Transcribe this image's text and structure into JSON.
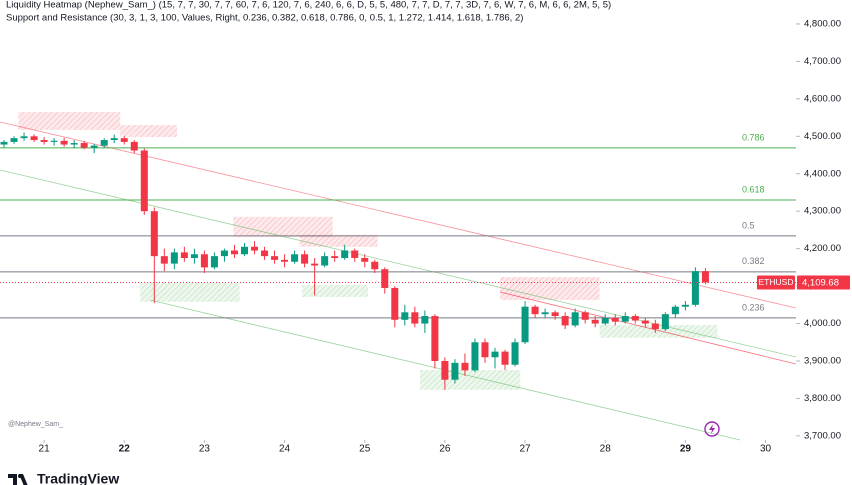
{
  "header": {
    "indicators": [
      "Liquidity Heatmap (Nephew_Sam_) (15, 7, 7, 30, 7, 7, 60, 7, 6, 120, 7, 6, 240, 6, 6, D, 5, 5, 480, 7, 7, D, 7, 7, 3D, 7, 6, W, 7, 6, M, 6, 6, 2M, 5, 5)",
      "Support and Resistance (30, 3, 1, 3, 100, Values, Right, 0.236, 0.382, 0.618, 0.786, 0, 0.5, 1, 1.272, 1.414, 1.618, 1.786, 2)"
    ]
  },
  "chart_data": {
    "type": "candlestick",
    "watermark": "@Nephew_Sam_",
    "up_color": "#089981",
    "down_color": "#f23645",
    "x": [
      20.5,
      20.625,
      20.75,
      20.875,
      21,
      21.125,
      21.25,
      21.375,
      21.5,
      21.625,
      21.75,
      21.875,
      22,
      22.125,
      22.25,
      22.375,
      22.5,
      22.625,
      22.75,
      22.875,
      23,
      23.125,
      23.25,
      23.375,
      23.5,
      23.625,
      23.75,
      23.875,
      24,
      24.125,
      24.25,
      24.375,
      24.5,
      24.625,
      24.75,
      24.875,
      25,
      25.125,
      25.25,
      25.375,
      25.5,
      25.625,
      25.75,
      25.875,
      26,
      26.125,
      26.25,
      26.375,
      26.5,
      26.625,
      26.75,
      26.875,
      27,
      27.125,
      27.25,
      27.375,
      27.5,
      27.625,
      27.75,
      27.875,
      28,
      28.125,
      28.25,
      28.375,
      28.5,
      28.625,
      28.75,
      28.875,
      29,
      29.125,
      29.25
    ],
    "open": [
      4478,
      4485,
      4495,
      4500,
      4490,
      4485,
      4488,
      4478,
      4482,
      4470,
      4475,
      4490,
      4495,
      4485,
      4462,
      4300,
      4180,
      4160,
      4190,
      4175,
      4185,
      4150,
      4180,
      4195,
      4185,
      4205,
      4195,
      4180,
      4170,
      4165,
      4185,
      4160,
      4155,
      4180,
      4175,
      4195,
      4175,
      4165,
      4145,
      4095,
      4010,
      4030,
      4000,
      4020,
      3900,
      3850,
      3895,
      3875,
      3950,
      3910,
      3925,
      3890,
      3950,
      4045,
      4025,
      4030,
      4020,
      3995,
      4030,
      4010,
      4000,
      4015,
      4005,
      4020,
      4008,
      4000,
      3985,
      4025,
      4045,
      4050,
      4140
    ],
    "high": [
      4490,
      4500,
      4510,
      4505,
      4498,
      4495,
      4496,
      4490,
      4488,
      4480,
      4495,
      4505,
      4500,
      4490,
      4468,
      4310,
      4200,
      4200,
      4205,
      4200,
      4195,
      4190,
      4200,
      4210,
      4215,
      4220,
      4205,
      4195,
      4185,
      4195,
      4195,
      4175,
      4190,
      4195,
      4210,
      4200,
      4185,
      4170,
      4150,
      4100,
      4050,
      4045,
      4035,
      4025,
      3910,
      3905,
      3920,
      3960,
      3960,
      3935,
      3930,
      3960,
      4060,
      4050,
      4040,
      4035,
      4030,
      4040,
      4035,
      4020,
      4025,
      4025,
      4030,
      4025,
      4015,
      4010,
      4030,
      4050,
      4060,
      4150,
      4148
    ],
    "low": [
      4470,
      4480,
      4488,
      4485,
      4478,
      4475,
      4472,
      4468,
      4465,
      4455,
      4470,
      4482,
      4478,
      4455,
      4290,
      4055,
      4140,
      4145,
      4165,
      4160,
      4135,
      4145,
      4165,
      4175,
      4180,
      4185,
      4170,
      4160,
      4150,
      4160,
      4150,
      4075,
      4150,
      4165,
      4170,
      4165,
      4150,
      4135,
      4080,
      3990,
      3995,
      3990,
      3975,
      3880,
      3823,
      3840,
      3860,
      3870,
      3895,
      3880,
      3876,
      3885,
      3945,
      4015,
      4015,
      4010,
      3985,
      3990,
      4000,
      3990,
      3995,
      3995,
      4000,
      4000,
      3990,
      3975,
      3980,
      4015,
      4035,
      4045,
      4105
    ],
    "close": [
      4485,
      4495,
      4500,
      4490,
      4485,
      4488,
      4478,
      4482,
      4470,
      4475,
      4490,
      4495,
      4485,
      4462,
      4300,
      4180,
      4160,
      4190,
      4175,
      4185,
      4150,
      4180,
      4195,
      4185,
      4205,
      4195,
      4180,
      4170,
      4165,
      4185,
      4160,
      4155,
      4180,
      4175,
      4195,
      4175,
      4165,
      4145,
      4095,
      4010,
      4030,
      4000,
      4020,
      3900,
      3850,
      3895,
      3875,
      3950,
      3910,
      3925,
      3890,
      3950,
      4045,
      4025,
      4030,
      4020,
      3995,
      4030,
      4010,
      4000,
      4015,
      4005,
      4020,
      4008,
      4000,
      3985,
      4025,
      4045,
      4050,
      4140,
      4109.68
    ],
    "xlim": [
      20.45,
      30.38
    ],
    "xticks": [
      21,
      22,
      23,
      24,
      25,
      26,
      27,
      28,
      29,
      30
    ],
    "bold_xticks": [
      22,
      29
    ],
    "ylim": [
      3689,
      4864
    ],
    "yticks": [
      {
        "value": 4800,
        "label": "4,800.00"
      },
      {
        "value": 4700,
        "label": "4,700.00"
      },
      {
        "value": 4600,
        "label": "4,600.00"
      },
      {
        "value": 4500,
        "label": "4,500.00"
      },
      {
        "value": 4400,
        "label": "4,400.00"
      },
      {
        "value": 4300,
        "label": "4,300.00"
      },
      {
        "value": 4200,
        "label": "4,200.00"
      },
      {
        "value": 4100,
        "label": "4,100.00"
      },
      {
        "value": 4000,
        "label": "4,000.00"
      },
      {
        "value": 3900,
        "label": "3,900.00"
      },
      {
        "value": 3800,
        "label": "3,800.00"
      },
      {
        "value": 3700,
        "label": "3,700.00"
      }
    ],
    "levels": [
      {
        "ratio": 0.786,
        "value": 4469,
        "color": "#4caf50"
      },
      {
        "ratio": 0.618,
        "value": 4330,
        "color": "#4caf50"
      },
      {
        "ratio": 0.5,
        "value": 4234,
        "color": "#787b86"
      },
      {
        "ratio": 0.382,
        "value": 4138,
        "color": "#787b86"
      },
      {
        "ratio": 0.236,
        "value": 4015,
        "color": "#787b86"
      }
    ],
    "price_tag": {
      "symbol": "ETHUSD",
      "value": 4109.68,
      "label": "4,109.68",
      "color": "#f23645"
    },
    "zones": [
      {
        "x": [
          20.68,
          21.95
        ],
        "y": [
          4517,
          4565
        ],
        "color": "#f23645"
      },
      {
        "x": [
          21.95,
          22.66
        ],
        "y": [
          4498,
          4530
        ],
        "color": "#f23645"
      },
      {
        "x": [
          23.36,
          24.6
        ],
        "y": [
          4231,
          4285
        ],
        "color": "#f23645"
      },
      {
        "x": [
          24.19,
          25.16
        ],
        "y": [
          4205,
          4237
        ],
        "color": "#f23645"
      },
      {
        "x": [
          26.69,
          27.93
        ],
        "y": [
          4063,
          4124
        ],
        "color": "#f23645"
      },
      {
        "x": [
          22.2,
          23.44
        ],
        "y": [
          4058,
          4108
        ],
        "color": "#4caf50"
      },
      {
        "x": [
          24.22,
          25.04
        ],
        "y": [
          4071,
          4103
        ],
        "color": "#4caf50"
      },
      {
        "x": [
          25.69,
          26.94
        ],
        "y": [
          3823,
          3876
        ],
        "color": "#4caf50"
      },
      {
        "x": [
          27.93,
          29.4
        ],
        "y": [
          3962,
          3996
        ],
        "color": "#4caf50"
      }
    ]
  },
  "footer": {
    "brand": "TradingView"
  }
}
